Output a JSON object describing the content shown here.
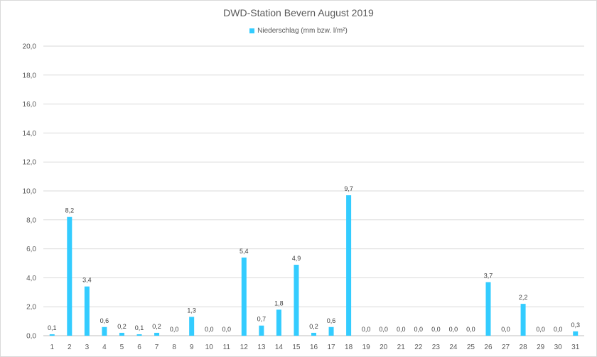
{
  "chart_data": {
    "type": "bar",
    "title": "DWD-Station Bevern August 2019",
    "series": [
      {
        "name": "Niederschlag (mm bzw. l/m²)",
        "color": "#33ccff",
        "values": [
          0.1,
          8.2,
          3.4,
          0.6,
          0.2,
          0.1,
          0.2,
          0.0,
          1.3,
          0.0,
          0.0,
          5.4,
          0.7,
          1.8,
          4.9,
          0.2,
          0.6,
          9.7,
          0.0,
          0.0,
          0.0,
          0.0,
          0.0,
          0.0,
          0.0,
          3.7,
          0.0,
          2.2,
          0.0,
          0.0,
          0.3
        ],
        "labels": [
          "0,1",
          "8,2",
          "3,4",
          "0,6",
          "0,2",
          "0,1",
          "0,2",
          "0,0",
          "1,3",
          "0,0",
          "0,0",
          "5,4",
          "0,7",
          "1,8",
          "4,9",
          "0,2",
          "0,6",
          "9,7",
          "0,0",
          "0,0",
          "0,0",
          "0,0",
          "0,0",
          "0,0",
          "0,0",
          "3,7",
          "0,0",
          "2,2",
          "0,0",
          "0,0",
          "0,3"
        ]
      }
    ],
    "categories": [
      "1",
      "2",
      "3",
      "4",
      "5",
      "6",
      "7",
      "8",
      "9",
      "10",
      "11",
      "12",
      "13",
      "14",
      "15",
      "16",
      "17",
      "18",
      "19",
      "20",
      "21",
      "22",
      "23",
      "24",
      "25",
      "26",
      "27",
      "28",
      "29",
      "30",
      "31"
    ],
    "ylim": [
      0,
      20
    ],
    "yticks": [
      0,
      2,
      4,
      6,
      8,
      10,
      12,
      14,
      16,
      18,
      20
    ],
    "ytick_labels": [
      "0,0",
      "2,0",
      "4,0",
      "6,0",
      "8,0",
      "10,0",
      "12,0",
      "14,0",
      "16,0",
      "18,0",
      "20,0"
    ],
    "grid": true,
    "legend_position": "top"
  }
}
